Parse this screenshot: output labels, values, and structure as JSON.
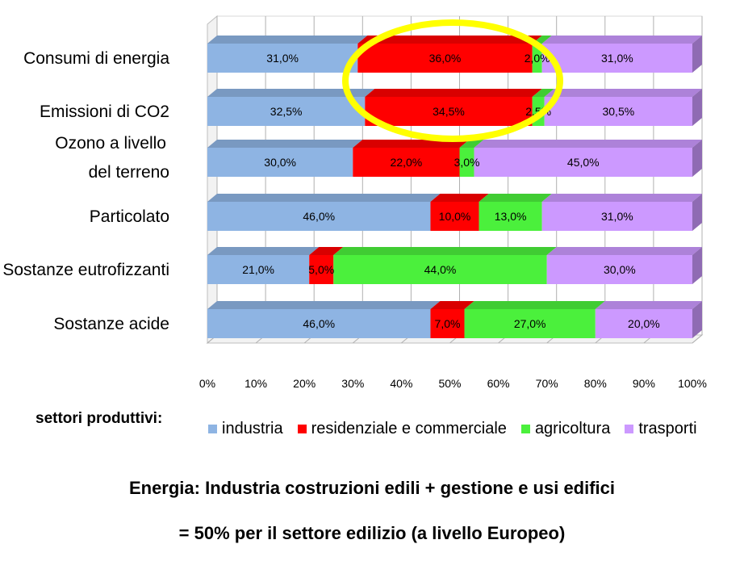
{
  "chart_data": {
    "type": "bar",
    "stacked": "percent",
    "orientation": "horizontal",
    "categories": [
      "Consumi di energia",
      "Emissioni di CO2",
      "Ozono a livello del terreno",
      "Particolato",
      "Sostanze eutrofizzanti",
      "Sostanze acide"
    ],
    "category_lines": [
      [
        "Consumi di energia"
      ],
      [
        "Emissioni di CO2"
      ],
      [
        "Ozono a livello",
        "del terreno"
      ],
      [
        "Particolato"
      ],
      [
        "Sostanze eutrofizzanti"
      ],
      [
        "Sostanze acide"
      ]
    ],
    "series": [
      {
        "name": "industria",
        "color": "#8EB4E3",
        "values": [
          31.0,
          32.5,
          30.0,
          46.0,
          21.0,
          46.0
        ],
        "labels": [
          "31,0%",
          "32,5%",
          "30,0%",
          "46,0%",
          "21,0%",
          "46,0%"
        ]
      },
      {
        "name": "residenziale e commerciale",
        "color": "#FF0000",
        "values": [
          36.0,
          34.5,
          22.0,
          10.0,
          5.0,
          7.0
        ],
        "labels": [
          "36,0%",
          "34,5%",
          "22,0%",
          "10,0%",
          "5,0%",
          "7,0%"
        ]
      },
      {
        "name": "agricoltura",
        "color": "#4BF03C",
        "values": [
          2.0,
          2.5,
          3.0,
          13.0,
          44.0,
          27.0
        ],
        "labels": [
          "2,0%",
          "2,5%",
          "3,0%",
          "13,0%",
          "44,0%",
          "27,0%"
        ]
      },
      {
        "name": "trasporti",
        "color": "#CC99FF",
        "values": [
          31.0,
          30.5,
          45.0,
          31.0,
          30.0,
          20.0
        ],
        "labels": [
          "31,0%",
          "30,5%",
          "45,0%",
          "31,0%",
          "30,0%",
          "20,0%"
        ]
      }
    ],
    "xlim": [
      0,
      100
    ],
    "xticks": [
      "0%",
      "10%",
      "20%",
      "30%",
      "40%",
      "50%",
      "60%",
      "70%",
      "80%",
      "90%",
      "100%"
    ],
    "grid": true,
    "legend_position": "bottom",
    "highlight": {
      "shape": "ellipse",
      "color": "#FFFF00",
      "categories": [
        "Consumi di energia",
        "Emissioni di CO2"
      ],
      "series": "residenziale e commerciale"
    }
  },
  "legend": {
    "title": "settori produttivi:"
  },
  "notes": {
    "line1": "Energia:  Industria costruzioni edili + gestione e usi edifici",
    "line2": "= 50% per il settore edilizio (a livello Europeo)"
  }
}
